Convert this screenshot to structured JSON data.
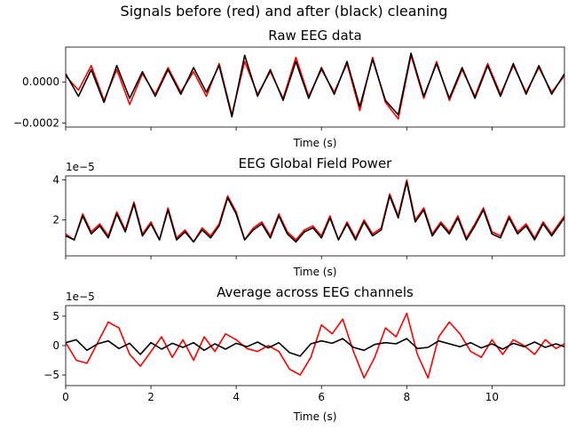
{
  "figure": {
    "suptitle": "Signals before (red) and after (black) cleaning"
  },
  "chart_data": [
    {
      "type": "line",
      "title": "Raw EEG data",
      "xlabel": "Time (s)",
      "ylabel": "",
      "offset_label": "",
      "xlim": [
        0,
        11.7
      ],
      "ylim": [
        -0.00022,
        0.00017
      ],
      "yticks": [
        {
          "v": 0.0,
          "label": "0.0000"
        },
        {
          "v": -0.0002,
          "label": "−0.0002"
        }
      ],
      "xticks": [
        {
          "v": 0,
          "label": ""
        },
        {
          "v": 2,
          "label": ""
        },
        {
          "v": 4,
          "label": ""
        },
        {
          "v": 6,
          "label": ""
        },
        {
          "v": 8,
          "label": ""
        },
        {
          "v": 10,
          "label": ""
        }
      ],
      "series": [
        {
          "color": "#ff0000",
          "x": [
            0.0,
            0.3,
            0.6,
            0.9,
            1.2,
            1.5,
            1.8,
            2.1,
            2.4,
            2.7,
            3.0,
            3.3,
            3.6,
            3.9,
            4.2,
            4.5,
            4.8,
            5.1,
            5.4,
            5.7,
            6.0,
            6.3,
            6.6,
            6.9,
            7.2,
            7.5,
            7.8,
            8.1,
            8.4,
            8.7,
            9.0,
            9.3,
            9.6,
            9.9,
            10.2,
            10.5,
            10.8,
            11.1,
            11.4,
            11.7
          ],
          "y": [
            3e-05,
            -4e-05,
            8e-05,
            -9e-05,
            6e-05,
            -0.00011,
            4e-05,
            -6e-05,
            7e-05,
            -5e-05,
            5e-05,
            -7e-05,
            9e-05,
            -0.00016,
            0.0001,
            -6e-05,
            5e-05,
            -8e-05,
            0.00012,
            -7e-05,
            6e-05,
            -5e-05,
            9e-05,
            -0.00014,
            0.00012,
            -0.0001,
            -0.00018,
            0.00013,
            -8e-05,
            0.0001,
            -9e-05,
            6e-05,
            -7e-05,
            9e-05,
            -6e-05,
            8e-05,
            -5e-05,
            7e-05,
            -5e-05,
            3e-05
          ]
        },
        {
          "color": "#000000",
          "x": [
            0.0,
            0.3,
            0.6,
            0.9,
            1.2,
            1.5,
            1.8,
            2.1,
            2.4,
            2.7,
            3.0,
            3.3,
            3.6,
            3.9,
            4.2,
            4.5,
            4.8,
            5.1,
            5.4,
            5.7,
            6.0,
            6.3,
            6.6,
            6.9,
            7.2,
            7.5,
            7.8,
            8.1,
            8.4,
            8.7,
            9.0,
            9.3,
            9.6,
            9.9,
            10.2,
            10.5,
            10.8,
            11.1,
            11.4,
            11.7
          ],
          "y": [
            4e-05,
            -7e-05,
            6e-05,
            -0.0001,
            8e-05,
            -8e-05,
            5e-05,
            -7e-05,
            6e-05,
            -6e-05,
            7e-05,
            -5e-05,
            8e-05,
            -0.00017,
            0.00013,
            -7e-05,
            6e-05,
            -9e-05,
            0.0001,
            -8e-05,
            7e-05,
            -6e-05,
            0.0001,
            -0.00012,
            0.00011,
            -9e-05,
            -0.00016,
            0.00014,
            -7e-05,
            9e-05,
            -8e-05,
            7e-05,
            -8e-05,
            8e-05,
            -7e-05,
            9e-05,
            -6e-05,
            8e-05,
            -6e-05,
            4e-05
          ]
        }
      ]
    },
    {
      "type": "line",
      "title": "EEG Global Field Power",
      "xlabel": "Time (s)",
      "ylabel": "",
      "offset_label": "1e−5",
      "xlim": [
        0,
        11.7
      ],
      "ylim": [
        0.2,
        4.2
      ],
      "yticks": [
        {
          "v": 2,
          "label": "2"
        },
        {
          "v": 4,
          "label": "4"
        }
      ],
      "xticks": [
        {
          "v": 0,
          "label": ""
        },
        {
          "v": 2,
          "label": ""
        },
        {
          "v": 4,
          "label": ""
        },
        {
          "v": 6,
          "label": ""
        },
        {
          "v": 8,
          "label": ""
        },
        {
          "v": 10,
          "label": ""
        }
      ],
      "series": [
        {
          "color": "#ff0000",
          "x": [
            0.0,
            0.2,
            0.4,
            0.6,
            0.8,
            1.0,
            1.2,
            1.4,
            1.6,
            1.8,
            2.0,
            2.2,
            2.4,
            2.6,
            2.8,
            3.0,
            3.2,
            3.4,
            3.6,
            3.8,
            4.0,
            4.2,
            4.4,
            4.6,
            4.8,
            5.0,
            5.2,
            5.4,
            5.6,
            5.8,
            6.0,
            6.2,
            6.4,
            6.6,
            6.8,
            7.0,
            7.2,
            7.4,
            7.6,
            7.8,
            8.0,
            8.2,
            8.4,
            8.6,
            8.8,
            9.0,
            9.2,
            9.4,
            9.6,
            9.8,
            10.0,
            10.2,
            10.4,
            10.6,
            10.8,
            11.0,
            11.2,
            11.4,
            11.7
          ],
          "y": [
            1.3,
            1.0,
            2.3,
            1.4,
            1.8,
            1.2,
            2.4,
            1.5,
            2.9,
            1.3,
            1.9,
            1.0,
            2.6,
            1.1,
            1.5,
            0.9,
            1.6,
            1.2,
            1.8,
            3.2,
            2.4,
            1.0,
            1.6,
            1.9,
            1.2,
            2.3,
            1.4,
            1.0,
            1.5,
            1.7,
            1.2,
            2.2,
            1.0,
            1.9,
            1.1,
            2.0,
            1.3,
            1.6,
            3.3,
            2.2,
            4.0,
            2.0,
            2.6,
            1.3,
            1.9,
            1.4,
            2.2,
            1.1,
            1.8,
            2.6,
            1.4,
            1.2,
            2.2,
            1.4,
            1.8,
            1.1,
            1.9,
            1.3,
            2.2
          ]
        },
        {
          "color": "#000000",
          "x": [
            0.0,
            0.2,
            0.4,
            0.6,
            0.8,
            1.0,
            1.2,
            1.4,
            1.6,
            1.8,
            2.0,
            2.2,
            2.4,
            2.6,
            2.8,
            3.0,
            3.2,
            3.4,
            3.6,
            3.8,
            4.0,
            4.2,
            4.4,
            4.6,
            4.8,
            5.0,
            5.2,
            5.4,
            5.6,
            5.8,
            6.0,
            6.2,
            6.4,
            6.6,
            6.8,
            7.0,
            7.2,
            7.4,
            7.6,
            7.8,
            8.0,
            8.2,
            8.4,
            8.6,
            8.8,
            9.0,
            9.2,
            9.4,
            9.6,
            9.8,
            10.0,
            10.2,
            10.4,
            10.6,
            10.8,
            11.0,
            11.2,
            11.4,
            11.7
          ],
          "y": [
            1.2,
            1.0,
            2.2,
            1.3,
            1.7,
            1.1,
            2.3,
            1.4,
            2.8,
            1.2,
            1.8,
            1.0,
            2.5,
            1.0,
            1.4,
            0.9,
            1.5,
            1.1,
            1.7,
            3.1,
            2.3,
            1.0,
            1.5,
            1.8,
            1.1,
            2.2,
            1.3,
            0.9,
            1.4,
            1.6,
            1.1,
            2.1,
            1.0,
            1.8,
            1.0,
            1.9,
            1.2,
            1.5,
            3.2,
            2.1,
            3.9,
            1.9,
            2.5,
            1.2,
            1.8,
            1.3,
            2.1,
            1.0,
            1.7,
            2.5,
            1.3,
            1.1,
            2.1,
            1.3,
            1.7,
            1.0,
            1.8,
            1.2,
            2.1
          ]
        }
      ]
    },
    {
      "type": "line",
      "title": "Average across EEG channels",
      "xlabel": "Time (s)",
      "ylabel": "",
      "offset_label": "1e−5",
      "xlim": [
        0,
        11.7
      ],
      "ylim": [
        -6.8,
        6.8
      ],
      "yticks": [
        {
          "v": 5,
          "label": "5"
        },
        {
          "v": 0,
          "label": "0"
        },
        {
          "v": -5,
          "label": "−5"
        }
      ],
      "xticks": [
        {
          "v": 0,
          "label": "0"
        },
        {
          "v": 2,
          "label": "2"
        },
        {
          "v": 4,
          "label": "4"
        },
        {
          "v": 6,
          "label": "6"
        },
        {
          "v": 8,
          "label": "8"
        },
        {
          "v": 10,
          "label": "10"
        }
      ],
      "series": [
        {
          "color": "#ff0000",
          "x": [
            0.0,
            0.25,
            0.5,
            0.75,
            1.0,
            1.25,
            1.5,
            1.75,
            2.0,
            2.25,
            2.5,
            2.75,
            3.0,
            3.25,
            3.5,
            3.75,
            4.0,
            4.25,
            4.5,
            4.75,
            5.0,
            5.25,
            5.5,
            5.75,
            6.0,
            6.25,
            6.5,
            6.75,
            7.0,
            7.25,
            7.5,
            7.75,
            8.0,
            8.25,
            8.5,
            8.75,
            9.0,
            9.25,
            9.5,
            9.75,
            10.0,
            10.25,
            10.5,
            10.75,
            11.0,
            11.25,
            11.5,
            11.7
          ],
          "y": [
            0.5,
            -2.5,
            -3.0,
            0.5,
            4.0,
            3.0,
            -1.5,
            -3.5,
            -1.0,
            1.5,
            -2.0,
            1.0,
            -2.5,
            1.5,
            -1.0,
            2.0,
            1.0,
            -0.5,
            -1.0,
            0.0,
            -1.0,
            -4.0,
            -5.0,
            -2.0,
            3.5,
            2.0,
            4.5,
            -1.0,
            -5.5,
            -2.0,
            3.0,
            1.5,
            5.5,
            -1.5,
            -5.5,
            1.5,
            4.0,
            2.0,
            -1.0,
            -2.0,
            1.0,
            -1.5,
            1.0,
            0.0,
            -1.5,
            1.0,
            -0.5,
            0.3
          ]
        },
        {
          "color": "#000000",
          "x": [
            0.0,
            0.25,
            0.5,
            0.75,
            1.0,
            1.25,
            1.5,
            1.75,
            2.0,
            2.25,
            2.5,
            2.75,
            3.0,
            3.25,
            3.5,
            3.75,
            4.0,
            4.25,
            4.5,
            4.75,
            5.0,
            5.25,
            5.5,
            5.75,
            6.0,
            6.25,
            6.5,
            6.75,
            7.0,
            7.25,
            7.5,
            7.75,
            8.0,
            8.25,
            8.5,
            8.75,
            9.0,
            9.25,
            9.5,
            9.75,
            10.0,
            10.25,
            10.5,
            10.75,
            11.0,
            11.25,
            11.5,
            11.7
          ],
          "y": [
            0.5,
            1.0,
            -0.8,
            0.3,
            0.8,
            -0.5,
            0.4,
            -1.5,
            0.5,
            -0.6,
            0.4,
            -0.3,
            0.5,
            -0.8,
            0.3,
            -0.6,
            0.4,
            -0.2,
            0.6,
            -0.4,
            0.5,
            -1.2,
            -1.8,
            0.3,
            0.8,
            0.4,
            1.2,
            -0.3,
            -0.8,
            0.2,
            0.5,
            0.3,
            1.2,
            -0.5,
            -0.3,
            0.8,
            0.3,
            -0.2,
            0.5,
            -0.4,
            0.3,
            -0.6,
            0.4,
            -0.2,
            0.6,
            -0.3,
            0.3,
            -0.2
          ]
        }
      ]
    }
  ]
}
